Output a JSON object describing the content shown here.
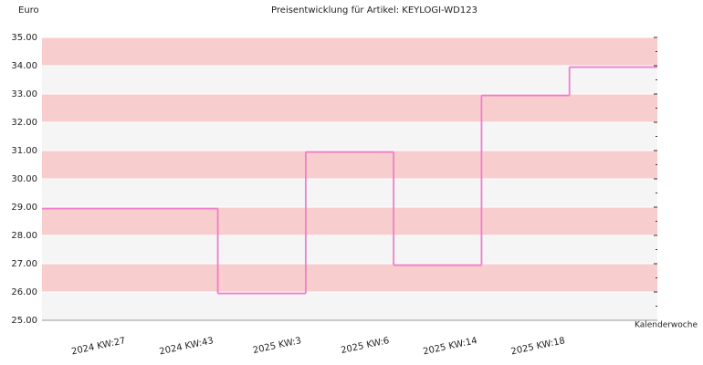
{
  "chart_data": {
    "type": "step",
    "title": "Preisentwicklung für Artikel: KEYLOGI-WD123",
    "y_label": "Euro",
    "x_label": "Kalenderwoche",
    "categories": [
      "2024 KW:27",
      "2024 KW:43",
      "2025 KW:3",
      "2025 KW:6",
      "2025 KW:14",
      "2025 KW:18"
    ],
    "values": [
      28.95,
      25.95,
      30.95,
      26.95,
      32.95,
      33.95
    ],
    "color": "#ee7fcc",
    "band_colors": [
      "#f8cdcd",
      "#f5f5f5"
    ],
    "ylim": [
      25,
      35
    ],
    "yticks": [
      {
        "value": 25,
        "label": "25.00"
      },
      {
        "value": 26,
        "label": "26.00"
      },
      {
        "value": 27,
        "label": "27.00"
      },
      {
        "value": 28,
        "label": "28.00"
      },
      {
        "value": 29,
        "label": "29.00"
      },
      {
        "value": 30,
        "label": "30.00"
      },
      {
        "value": 31,
        "label": "31.00"
      },
      {
        "value": 32,
        "label": "32.00"
      },
      {
        "value": 33,
        "label": "33.00"
      },
      {
        "value": 34,
        "label": "34.00"
      },
      {
        "value": 35,
        "label": "35.00"
      }
    ]
  }
}
